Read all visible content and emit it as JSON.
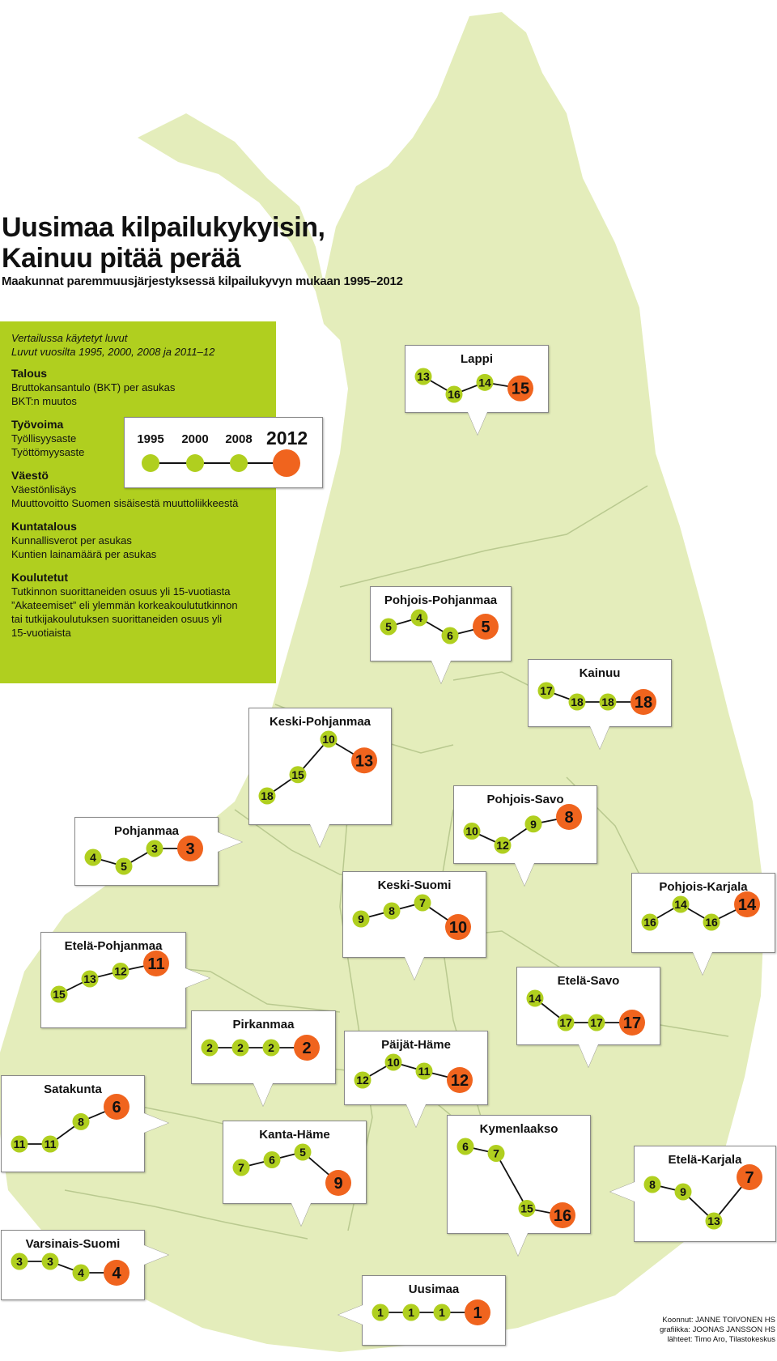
{
  "title_line1": "Uusimaa kilpailukykyisin,",
  "title_line2": "Kainuu pitää perää",
  "subtitle": "Maakunnat paremmuusjärjestyksessä kilpailukyvyn mukaan 1995–2012",
  "info": {
    "intro1": "Vertailussa käytetyt luvut",
    "intro2": "Luvut vuosilta 1995, 2000, 2008 ja 2011–12",
    "sections": [
      {
        "title": "Talous",
        "lines": [
          "Bruttokansantulo (BKT) per asukas",
          "BKT:n muutos"
        ]
      },
      {
        "title": "Työvoima",
        "lines": [
          "Työllisyysaste",
          "Työttömyysaste"
        ]
      },
      {
        "title": "Väestö",
        "lines": [
          "Väestönlisäys",
          "Muuttovoitto Suomen sisäisestä muuttoliikkeestä"
        ]
      },
      {
        "title": "Kuntatalous",
        "lines": [
          "Kunnallisverot per asukas",
          "Kuntien lainamäärä per asukas"
        ]
      },
      {
        "title": "Koulutetut",
        "lines": [
          "Tutkinnon suorittaneiden osuus yli 15-vuotiasta",
          "”Akateemiset” eli ylemmän korkeakoulututkinnon",
          "tai tutkijakoulutuksen suorittaneiden osuus yli",
          "15-vuotiaista"
        ]
      }
    ]
  },
  "legend": {
    "years": [
      "1995",
      "2000",
      "2008",
      "2012"
    ]
  },
  "colors": {
    "land": "#e4edbb",
    "border": "#b9c98f",
    "green_dot": "#b0cf1f",
    "orange_dot": "#f0641e",
    "info_box": "#b0cf1f"
  },
  "regions": [
    {
      "name": "Lappi",
      "ranks": [
        13,
        16,
        14,
        15
      ]
    },
    {
      "name": "Pohjois-Pohjanmaa",
      "ranks": [
        5,
        4,
        6,
        5
      ]
    },
    {
      "name": "Kainuu",
      "ranks": [
        17,
        18,
        18,
        18
      ]
    },
    {
      "name": "Keski-Pohjanmaa",
      "ranks": [
        18,
        15,
        10,
        13
      ]
    },
    {
      "name": "Pohjois-Savo",
      "ranks": [
        10,
        12,
        9,
        8
      ]
    },
    {
      "name": "Pohjanmaa",
      "ranks": [
        4,
        5,
        3,
        3
      ]
    },
    {
      "name": "Keski-Suomi",
      "ranks": [
        9,
        8,
        7,
        10
      ]
    },
    {
      "name": "Pohjois-Karjala",
      "ranks": [
        16,
        14,
        16,
        14
      ]
    },
    {
      "name": "Etelä-Pohjanmaa",
      "ranks": [
        15,
        13,
        12,
        11
      ]
    },
    {
      "name": "Etelä-Savo",
      "ranks": [
        14,
        17,
        17,
        17
      ]
    },
    {
      "name": "Pirkanmaa",
      "ranks": [
        2,
        2,
        2,
        2
      ]
    },
    {
      "name": "Päijät-Häme",
      "ranks": [
        12,
        10,
        11,
        12
      ]
    },
    {
      "name": "Satakunta",
      "ranks": [
        11,
        11,
        8,
        6
      ]
    },
    {
      "name": "Kanta-Häme",
      "ranks": [
        7,
        6,
        5,
        9
      ]
    },
    {
      "name": "Kymenlaakso",
      "ranks": [
        6,
        7,
        15,
        16
      ]
    },
    {
      "name": "Etelä-Karjala",
      "ranks": [
        8,
        9,
        13,
        7
      ]
    },
    {
      "name": "Varsinais-Suomi",
      "ranks": [
        3,
        3,
        4,
        4
      ]
    },
    {
      "name": "Uusimaa",
      "ranks": [
        1,
        1,
        1,
        1
      ]
    }
  ],
  "credits": [
    "Koonnut: JANNE TOIVONEN HS",
    "grafiikka: JOONAS JANSSON HS",
    "lähteet: Timo Aro, Tilastokeskus"
  ]
}
